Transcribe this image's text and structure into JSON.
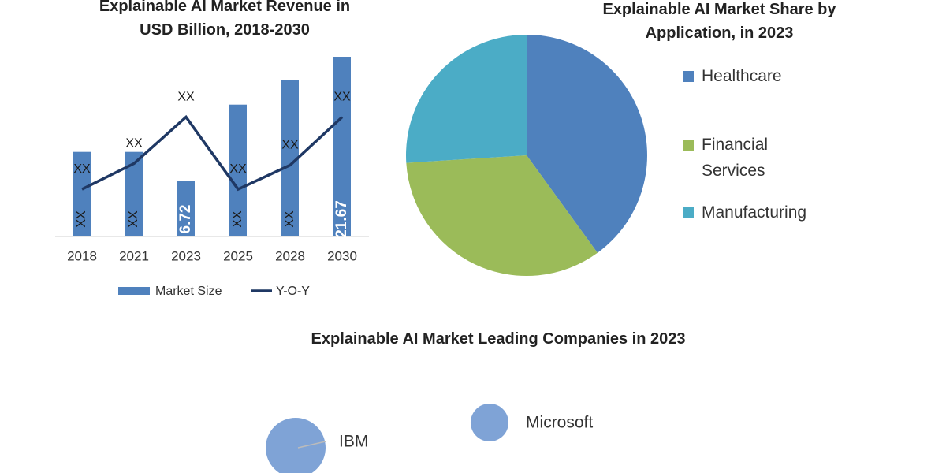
{
  "chart_data": [
    {
      "type": "bar",
      "title": "Explainable AI Market Revenue in USD Billion, 2018-2030",
      "categories": [
        "2018",
        "2021",
        "2023",
        "2025",
        "2028",
        "2030"
      ],
      "series": [
        {
          "name": "Market Size",
          "type": "bar",
          "color": "#4f81bd",
          "values": [
            10.2,
            10.2,
            6.72,
            15.9,
            18.9,
            21.67
          ],
          "value_labels": [
            "XX",
            "XX",
            "6.72",
            "XX",
            "XX",
            "21.67"
          ]
        },
        {
          "name": "Y-O-Y",
          "type": "line",
          "color": "#1f3864",
          "values": [
            5.7,
            8.8,
            14.4,
            5.7,
            8.6,
            14.4
          ],
          "value_labels": [
            "XX",
            "XX",
            "XX",
            "XX",
            "XX",
            "XX"
          ]
        }
      ]
    },
    {
      "type": "pie",
      "title": "Explainable AI Market Share by Application, in 2023",
      "categories": [
        "Healthcare",
        "Financial Services",
        "Manufacturing"
      ],
      "values": [
        40,
        34,
        26
      ],
      "colors": [
        "#4f81bd",
        "#9bbb59",
        "#4bacc6"
      ]
    },
    {
      "type": "bubble",
      "title": "Explainable AI Market Leading Companies in 2023",
      "labels": [
        "IBM",
        "Microsoft"
      ],
      "sizes": [
        100,
        40
      ],
      "color": "#7fa3d6"
    }
  ]
}
